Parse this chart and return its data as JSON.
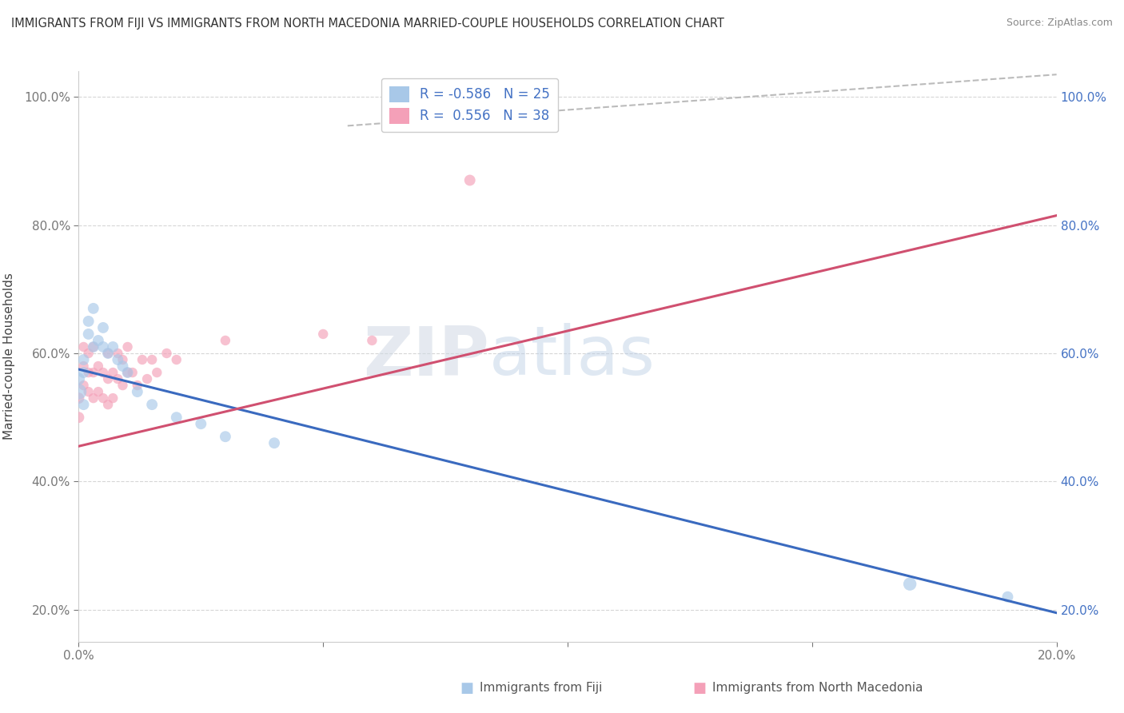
{
  "title": "IMMIGRANTS FROM FIJI VS IMMIGRANTS FROM NORTH MACEDONIA MARRIED-COUPLE HOUSEHOLDS CORRELATION CHART",
  "source": "Source: ZipAtlas.com",
  "ylabel": "Married-couple Households",
  "R1": -0.586,
  "N1": 25,
  "R2": 0.556,
  "N2": 38,
  "color1": "#a8c8e8",
  "color2": "#f4a0b8",
  "line_color1": "#3a6abf",
  "line_color2": "#d05070",
  "dashed_color": "#bbbbbb",
  "watermark_zip": "ZIP",
  "watermark_atlas": "atlas",
  "xlim": [
    0.0,
    0.2
  ],
  "ylim": [
    0.15,
    1.04
  ],
  "xticks": [
    0.0,
    0.05,
    0.1,
    0.15,
    0.2
  ],
  "yticks": [
    0.2,
    0.4,
    0.6,
    0.8,
    1.0
  ],
  "legend_label1": "Immigrants from Fiji",
  "legend_label2": "Immigrants from North Macedonia",
  "fiji_x": [
    0.0,
    0.0,
    0.001,
    0.001,
    0.001,
    0.002,
    0.002,
    0.003,
    0.003,
    0.004,
    0.005,
    0.005,
    0.006,
    0.007,
    0.008,
    0.009,
    0.01,
    0.012,
    0.015,
    0.02,
    0.025,
    0.03,
    0.04,
    0.17,
    0.19
  ],
  "fiji_y": [
    0.54,
    0.56,
    0.57,
    0.52,
    0.59,
    0.63,
    0.65,
    0.61,
    0.67,
    0.62,
    0.61,
    0.64,
    0.6,
    0.61,
    0.59,
    0.58,
    0.57,
    0.54,
    0.52,
    0.5,
    0.49,
    0.47,
    0.46,
    0.24,
    0.22
  ],
  "fiji_size": [
    200,
    120,
    100,
    100,
    100,
    100,
    100,
    100,
    100,
    100,
    100,
    100,
    100,
    100,
    100,
    100,
    100,
    100,
    100,
    100,
    100,
    100,
    100,
    140,
    100
  ],
  "macedonia_x": [
    0.0,
    0.0,
    0.001,
    0.001,
    0.001,
    0.002,
    0.002,
    0.002,
    0.003,
    0.003,
    0.003,
    0.004,
    0.004,
    0.005,
    0.005,
    0.006,
    0.006,
    0.006,
    0.007,
    0.007,
    0.008,
    0.008,
    0.009,
    0.009,
    0.01,
    0.01,
    0.011,
    0.012,
    0.013,
    0.014,
    0.015,
    0.016,
    0.018,
    0.02,
    0.03,
    0.05,
    0.06,
    0.08
  ],
  "macedonia_y": [
    0.5,
    0.53,
    0.55,
    0.58,
    0.61,
    0.54,
    0.57,
    0.6,
    0.53,
    0.57,
    0.61,
    0.54,
    0.58,
    0.53,
    0.57,
    0.52,
    0.56,
    0.6,
    0.53,
    0.57,
    0.56,
    0.6,
    0.55,
    0.59,
    0.57,
    0.61,
    0.57,
    0.55,
    0.59,
    0.56,
    0.59,
    0.57,
    0.6,
    0.59,
    0.62,
    0.63,
    0.62,
    0.87
  ],
  "macedonia_size": [
    100,
    100,
    80,
    80,
    80,
    80,
    80,
    80,
    80,
    80,
    80,
    80,
    80,
    80,
    80,
    80,
    80,
    80,
    80,
    80,
    80,
    80,
    80,
    80,
    80,
    80,
    80,
    80,
    80,
    80,
    80,
    80,
    80,
    80,
    80,
    80,
    80,
    100
  ],
  "fiji_line_x": [
    0.0,
    0.2
  ],
  "fiji_line_y": [
    0.575,
    0.195
  ],
  "mac_line_x": [
    0.0,
    0.2
  ],
  "mac_line_y": [
    0.455,
    0.815
  ],
  "dash_line_x": [
    0.055,
    0.2
  ],
  "dash_line_y": [
    0.955,
    1.035
  ]
}
